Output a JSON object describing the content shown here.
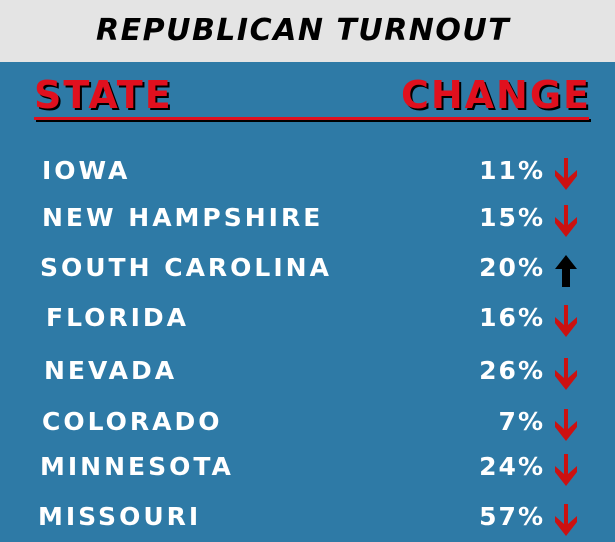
{
  "title": "REPUBLICAN TURNOUT",
  "headers": {
    "state": "STATE",
    "change": "CHANGE"
  },
  "colors": {
    "background": "#2e7aa6",
    "header_red": "#e0101e",
    "arrow_down": "#cc1111",
    "arrow_up": "#000000",
    "text": "#ffffff"
  },
  "chart_data": {
    "type": "table",
    "title": "REPUBLICAN TURNOUT",
    "columns": [
      "STATE",
      "CHANGE"
    ],
    "rows": [
      {
        "state": "IOWA",
        "change": "11%",
        "direction": "down"
      },
      {
        "state": "NEW HAMPSHIRE",
        "change": "15%",
        "direction": "down"
      },
      {
        "state": "SOUTH CAROLINA",
        "change": "20%",
        "direction": "up"
      },
      {
        "state": "FLORIDA",
        "change": "16%",
        "direction": "down"
      },
      {
        "state": "NEVADA",
        "change": "26%",
        "direction": "down"
      },
      {
        "state": "COLORADO",
        "change": "7%",
        "direction": "down"
      },
      {
        "state": "MINNESOTA",
        "change": "24%",
        "direction": "down"
      },
      {
        "state": "MISSOURI",
        "change": "57%",
        "direction": "down"
      }
    ]
  }
}
